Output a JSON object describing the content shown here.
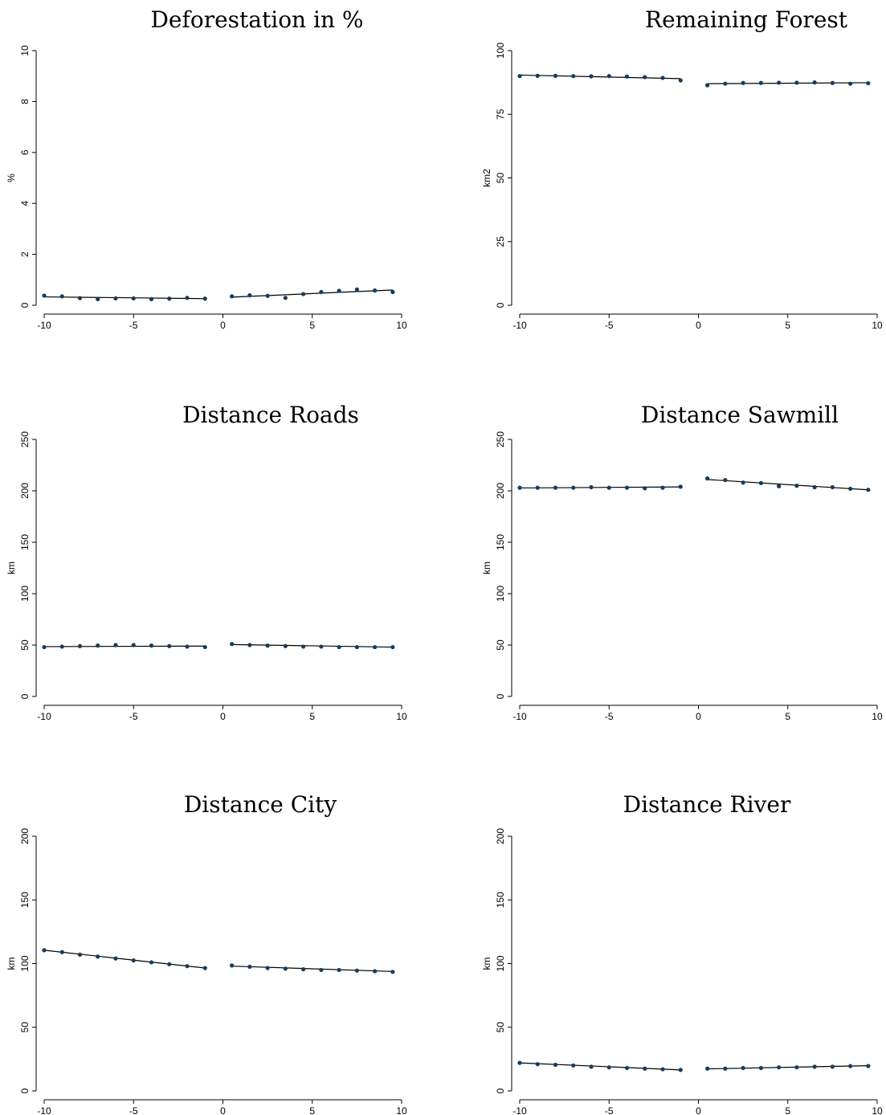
{
  "chart_data": [
    {
      "type": "scatter",
      "title": "Deforestation in %",
      "ylabel": "%",
      "xlim": [
        -10,
        10
      ],
      "ylim": [
        0,
        10
      ],
      "xticks": [
        -10,
        -5,
        0,
        5,
        10
      ],
      "yticks": [
        0,
        2,
        4,
        6,
        8,
        10
      ],
      "grid": false,
      "points": {
        "left": {
          "x": [
            -10,
            -9,
            -8,
            -7,
            -6,
            -5,
            -4,
            -3,
            -2,
            -1
          ],
          "y": [
            0.38,
            0.35,
            0.28,
            0.24,
            0.27,
            0.27,
            0.24,
            0.26,
            0.29,
            0.26
          ]
        },
        "right": {
          "x": [
            0.5,
            1.5,
            2.5,
            3.5,
            4.5,
            5.5,
            6.5,
            7.5,
            8.5,
            9.5
          ],
          "y": [
            0.35,
            0.39,
            0.37,
            0.29,
            0.44,
            0.52,
            0.57,
            0.62,
            0.58,
            0.52
          ]
        }
      },
      "fit": {
        "left": {
          "x": [
            -10,
            -1
          ],
          "y": [
            0.33,
            0.26
          ]
        },
        "right": {
          "x": [
            0.5,
            9.5
          ],
          "y": [
            0.32,
            0.6
          ]
        }
      }
    },
    {
      "type": "scatter",
      "title": "Remaining Forest",
      "ylabel": "km2",
      "xlim": [
        -10,
        10
      ],
      "ylim": [
        0,
        100
      ],
      "xticks": [
        -10,
        -5,
        0,
        5,
        10
      ],
      "yticks": [
        0,
        25,
        50,
        75,
        100
      ],
      "grid": false,
      "points": {
        "left": {
          "x": [
            -10,
            -9,
            -8,
            -7,
            -6,
            -5,
            -4,
            -3,
            -2,
            -1
          ],
          "y": [
            90.0,
            90.1,
            90.1,
            90.0,
            89.9,
            90.0,
            89.8,
            89.6,
            89.3,
            88.3
          ]
        },
        "right": {
          "x": [
            0.5,
            1.5,
            2.5,
            3.5,
            4.5,
            5.5,
            6.5,
            7.5,
            8.5,
            9.5
          ],
          "y": [
            86.4,
            87.0,
            87.3,
            87.3,
            87.4,
            87.4,
            87.5,
            87.3,
            87.0,
            87.2
          ]
        }
      },
      "fit": {
        "left": {
          "x": [
            -10,
            -1
          ],
          "y": [
            90.4,
            89.0
          ]
        },
        "right": {
          "x": [
            0.5,
            9.5
          ],
          "y": [
            87.0,
            87.4
          ]
        }
      }
    },
    {
      "type": "scatter",
      "title": "Distance Roads",
      "ylabel": "km",
      "xlim": [
        -10,
        10
      ],
      "ylim": [
        0,
        250
      ],
      "xticks": [
        -10,
        -5,
        0,
        5,
        10
      ],
      "yticks": [
        0,
        50,
        100,
        150,
        200,
        250
      ],
      "grid": false,
      "points": {
        "left": {
          "x": [
            -10,
            -9,
            -8,
            -7,
            -6,
            -5,
            -4,
            -3,
            -2,
            -1
          ],
          "y": [
            48,
            48.5,
            49,
            49.5,
            50,
            50,
            49.5,
            49,
            48.5,
            48
          ]
        },
        "right": {
          "x": [
            0.5,
            1.5,
            2.5,
            3.5,
            4.5,
            5.5,
            6.5,
            7.5,
            8.5,
            9.5
          ],
          "y": [
            51,
            50,
            49.5,
            49,
            48.5,
            48.5,
            48,
            48,
            48,
            48
          ]
        }
      },
      "fit": {
        "left": {
          "x": [
            -10,
            -1
          ],
          "y": [
            48.5,
            49.0
          ]
        },
        "right": {
          "x": [
            0.5,
            9.5
          ],
          "y": [
            50.5,
            48.0
          ]
        }
      }
    },
    {
      "type": "scatter",
      "title": "Distance Sawmill",
      "ylabel": "km",
      "xlim": [
        -10,
        10
      ],
      "ylim": [
        0,
        250
      ],
      "xticks": [
        -10,
        -5,
        0,
        5,
        10
      ],
      "yticks": [
        0,
        50,
        100,
        150,
        200,
        250
      ],
      "grid": false,
      "points": {
        "left": {
          "x": [
            -10,
            -9,
            -8,
            -7,
            -6,
            -5,
            -4,
            -3,
            -2,
            -1
          ],
          "y": [
            203,
            203,
            203,
            203,
            203.5,
            203,
            203,
            202.5,
            203,
            204
          ]
        },
        "right": {
          "x": [
            0.5,
            1.5,
            2.5,
            3.5,
            4.5,
            5.5,
            6.5,
            7.5,
            8.5,
            9.5
          ],
          "y": [
            212,
            210.5,
            208,
            207.5,
            204.5,
            205,
            203.5,
            203.5,
            202,
            201
          ]
        }
      },
      "fit": {
        "left": {
          "x": [
            -10,
            -1
          ],
          "y": [
            202.8,
            203.8
          ]
        },
        "right": {
          "x": [
            0.5,
            9.5
          ],
          "y": [
            211.0,
            201.0
          ]
        }
      }
    },
    {
      "type": "scatter",
      "title": "Distance City",
      "ylabel": "km",
      "xlim": [
        -10,
        10
      ],
      "ylim": [
        0,
        200
      ],
      "xticks": [
        -10,
        -5,
        0,
        5,
        10
      ],
      "yticks": [
        0,
        50,
        100,
        150,
        200
      ],
      "grid": false,
      "points": {
        "left": {
          "x": [
            -10,
            -9,
            -8,
            -7,
            -6,
            -5,
            -4,
            -3,
            -2,
            -1
          ],
          "y": [
            110.5,
            109,
            107,
            105.5,
            104,
            102.5,
            101,
            99.5,
            98,
            96.5
          ]
        },
        "right": {
          "x": [
            0.5,
            1.5,
            2.5,
            3.5,
            4.5,
            5.5,
            6.5,
            7.5,
            8.5,
            9.5
          ],
          "y": [
            98.5,
            97.5,
            96.5,
            96,
            95.5,
            95,
            95,
            94.5,
            94,
            93.5
          ]
        }
      },
      "fit": {
        "left": {
          "x": [
            -10,
            -1
          ],
          "y": [
            110.5,
            96.5
          ]
        },
        "right": {
          "x": [
            0.5,
            9.5
          ],
          "y": [
            98.0,
            93.8
          ]
        }
      }
    },
    {
      "type": "scatter",
      "title": "Distance River",
      "ylabel": "km",
      "xlim": [
        -10,
        10
      ],
      "ylim": [
        0,
        200
      ],
      "xticks": [
        -10,
        -5,
        0,
        5,
        10
      ],
      "yticks": [
        0,
        50,
        100,
        150,
        200
      ],
      "grid": false,
      "points": {
        "left": {
          "x": [
            -10,
            -9,
            -8,
            -7,
            -6,
            -5,
            -4,
            -3,
            -2,
            -1
          ],
          "y": [
            22,
            21,
            20.5,
            20,
            19,
            18.5,
            18,
            17.5,
            17,
            16.5
          ]
        },
        "right": {
          "x": [
            0.5,
            1.5,
            2.5,
            3.5,
            4.5,
            5.5,
            6.5,
            7.5,
            8.5,
            9.5
          ],
          "y": [
            17.5,
            17.5,
            18,
            18,
            18.5,
            18.5,
            19,
            19,
            19.5,
            19.5
          ]
        }
      },
      "fit": {
        "left": {
          "x": [
            -10,
            -1
          ],
          "y": [
            22.0,
            16.5
          ]
        },
        "right": {
          "x": [
            0.5,
            9.5
          ],
          "y": [
            17.3,
            19.8
          ]
        }
      }
    }
  ]
}
